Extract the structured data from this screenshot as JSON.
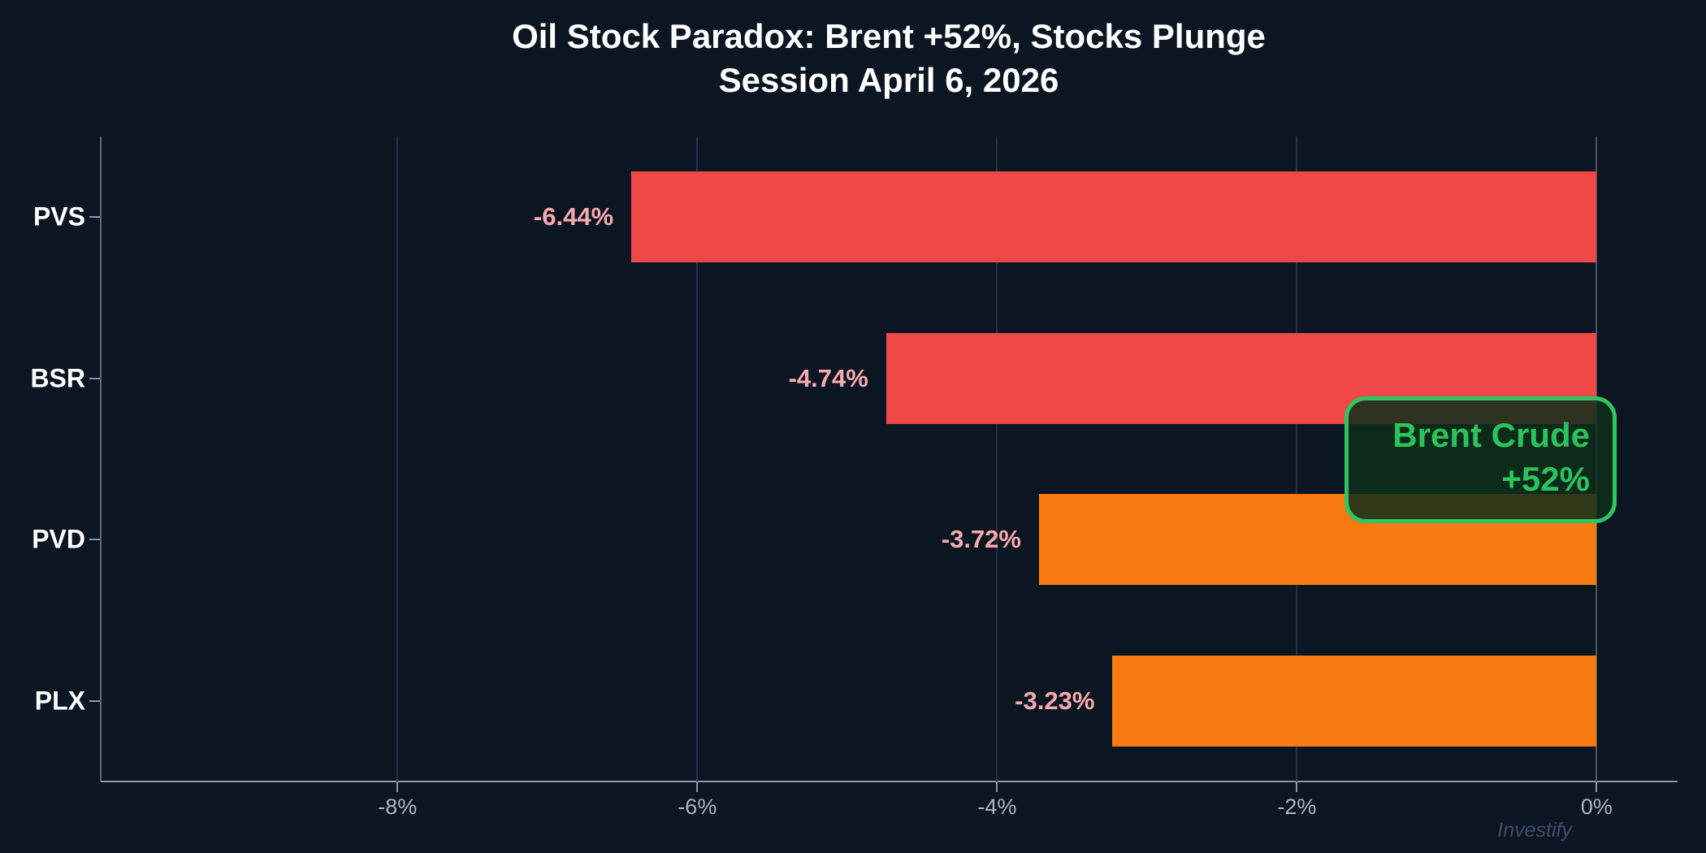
{
  "title": {
    "line1": "Oil Stock Paradox: Brent +52%, Stocks Plunge",
    "line2": "Session April 6, 2026"
  },
  "annotation": {
    "line1": "Brent Crude",
    "line2": "+52%",
    "text_color": "#2bc35c",
    "border_color": "#2ec662",
    "fill_color": "rgba(13,47,26,0.85)"
  },
  "watermark": "Investify",
  "chart_data": {
    "type": "bar",
    "orientation": "horizontal",
    "title": "Oil Stock Paradox: Brent +52%, Stocks Plunge — Session April 6, 2026",
    "categories": [
      "PVS",
      "BSR",
      "PVD",
      "PLX"
    ],
    "values": [
      -6.44,
      -4.74,
      -3.72,
      -3.23
    ],
    "value_labels": [
      "-6.44%",
      "-4.74%",
      "-3.72%",
      "-3.23%"
    ],
    "bar_colors": [
      "#f04747",
      "#f04747",
      "#f8790f",
      "#f8790f"
    ],
    "value_label_color": "#f8a9ad",
    "x_ticks": [
      -8,
      -6,
      -4,
      -2,
      0
    ],
    "x_tick_labels": [
      "-8%",
      "-6%",
      "-4%",
      "-2%",
      "0%"
    ],
    "xlim": [
      -9.98,
      0.54
    ],
    "xlabel": "",
    "ylabel": "",
    "grid": "vertical-only",
    "legend": "none",
    "background_color": "#0b1622",
    "gridline_color": "#223150",
    "zero_line_color": "#49545f",
    "annotation_text": "Brent Crude +52%"
  }
}
